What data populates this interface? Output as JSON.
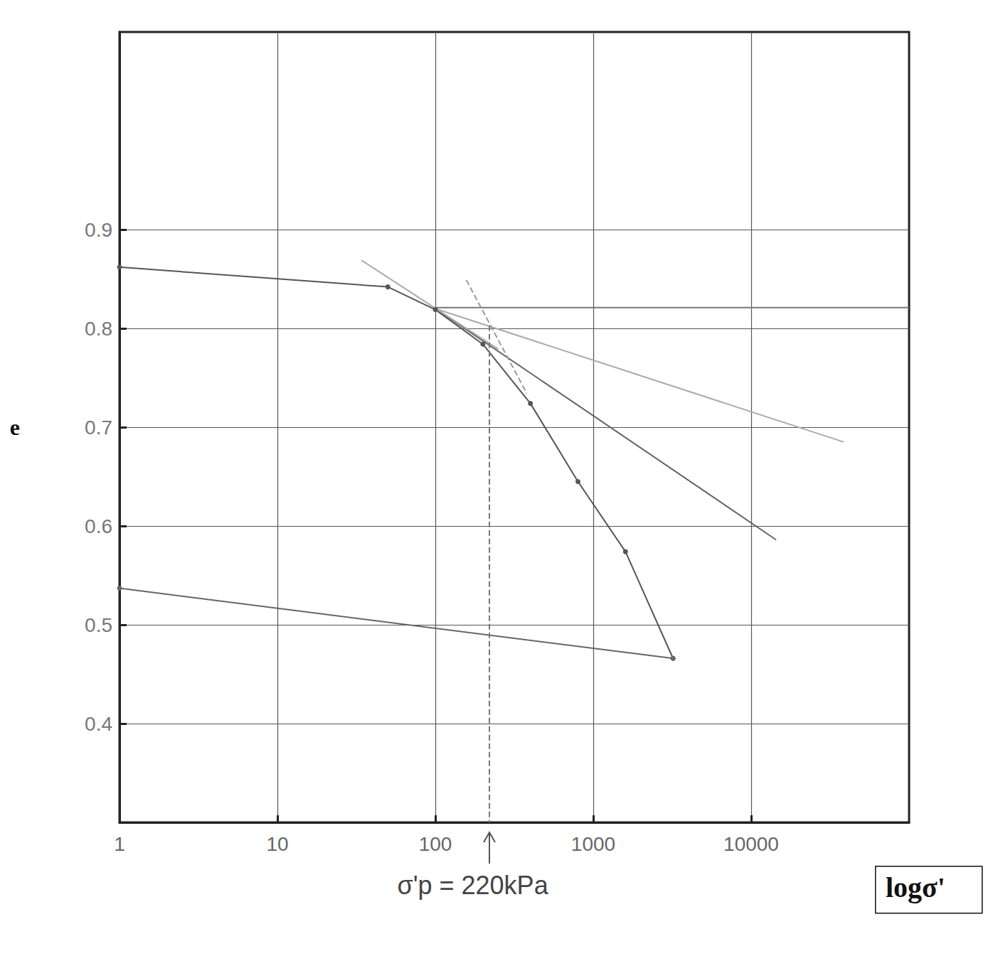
{
  "chart_data": {
    "type": "line",
    "x_label": "logσ'",
    "y_label": "e",
    "log": "x",
    "grid": true,
    "xlim": [
      1,
      100000
    ],
    "ylim": [
      0.3,
      1.1
    ],
    "xticks": [
      1,
      10,
      100,
      1000,
      10000
    ],
    "yticks": [
      0.4,
      0.5,
      0.6,
      0.7,
      0.8,
      0.9
    ],
    "annotations": [
      {
        "text": "σ'p = 220kPa",
        "x": 220
      }
    ],
    "series": [
      {
        "x": [
          1,
          50,
          100,
          200,
          400,
          800,
          1600,
          3200
        ],
        "values": [
          0.862,
          0.842,
          0.819,
          0.784,
          0.724,
          0.645,
          0.574,
          0.466
        ],
        "color": "#555555",
        "marker": "circle",
        "line_style": "solid"
      },
      {
        "x": [
          3200,
          1
        ],
        "values": [
          0.466,
          0.537
        ],
        "color": "#666666",
        "marker": "circle",
        "line_style": "solid"
      },
      {
        "x": [
          100,
          100000
        ],
        "values": [
          0.821,
          0.821
        ],
        "color": "#777777",
        "marker": "none",
        "line_style": "solid"
      },
      {
        "x": [
          100,
          38600
        ],
        "values": [
          0.82,
          0.685
        ],
        "color": "#aaaaaa",
        "marker": "none",
        "line_style": "solid"
      },
      {
        "x": [
          100,
          14400
        ],
        "values": [
          0.82,
          0.586
        ],
        "color": "#666666",
        "marker": "none",
        "line_style": "solid"
      },
      {
        "x": [
          34,
          250
        ],
        "values": [
          0.869,
          0.779
        ],
        "color": "#aaaaaa",
        "marker": "none",
        "line_style": "solid"
      },
      {
        "x": [
          157,
          380
        ],
        "values": [
          0.849,
          0.734
        ],
        "color": "#999999",
        "marker": "none",
        "line_style": "dashed"
      },
      {
        "x": [
          220,
          220
        ],
        "values": [
          0.803,
          0.3
        ],
        "color": "#777777",
        "marker": "none",
        "line_style": "dashed"
      }
    ]
  }
}
